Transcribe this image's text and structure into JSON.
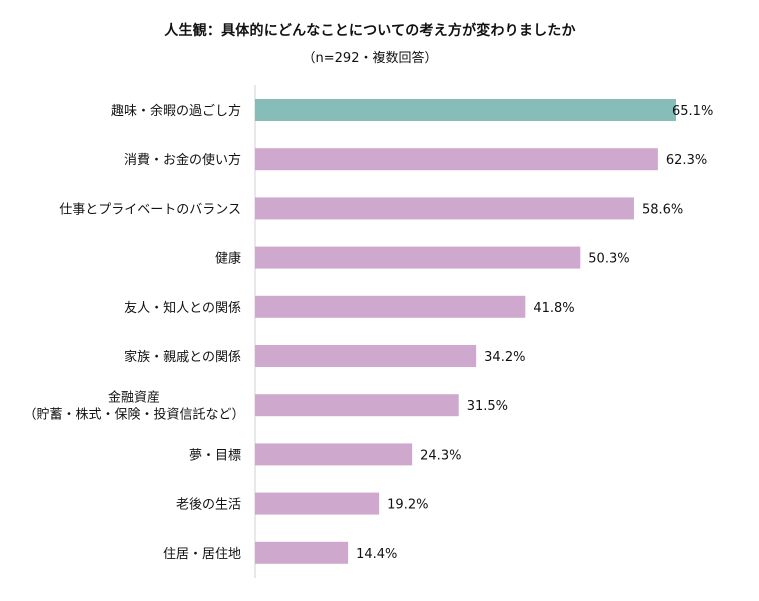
{
  "chart_data": {
    "type": "bar",
    "orientation": "horizontal",
    "title": "人生観：具体的にどんなことについての考え方が変わりましたか",
    "subtitle": "（n=292・複数回答）",
    "categories": [
      "趣味・余暇の過ごし方",
      "消費・お金の使い方",
      "仕事とプライベートのバランス",
      "健康",
      "友人・知人との関係",
      "家族・親戚との関係",
      [
        "金融資産",
        "（貯蓄・株式・保険・投資信託など）"
      ],
      "夢・目標",
      "老後の生活",
      "住居・居住地"
    ],
    "values": [
      65.1,
      62.3,
      58.6,
      50.3,
      41.8,
      34.2,
      31.5,
      24.3,
      19.2,
      14.4
    ],
    "value_labels": [
      "65.1%",
      "62.3%",
      "58.6%",
      "50.3%",
      "41.8%",
      "34.2%",
      "31.5%",
      "24.3%",
      "19.2%",
      "14.4%"
    ],
    "xlim": [
      0,
      65.1
    ],
    "colors": {
      "highlight": "#86bdb8",
      "default": "#cfa9cd",
      "axis": "#d0d0d0"
    },
    "highlight_index": 0,
    "grid": false,
    "legend": "none"
  }
}
